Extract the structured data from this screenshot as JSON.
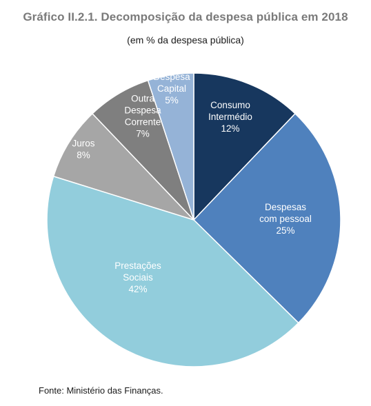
{
  "title": "Gráfico II.2.1. Decomposição da despesa pública em 2018",
  "subtitle": "(em % da despesa pública)",
  "source": "Fonte: Ministério das Finanças.",
  "chart_data": {
    "type": "pie",
    "title": "Gráfico II.2.1. Decomposição da despesa pública em 2018",
    "subtitle": "(em % da despesa pública)",
    "unit": "%",
    "slices": [
      {
        "label": [
          "Consumo",
          "Intermédio"
        ],
        "value_label": "12%",
        "value": 12,
        "color": "#17375e",
        "text_color": "#ffffff"
      },
      {
        "label": [
          "Despesas",
          "com pessoal"
        ],
        "value_label": "25%",
        "value": 25,
        "color": "#4f81bd",
        "text_color": "#ffffff"
      },
      {
        "label": [
          "Prestações",
          "Sociais"
        ],
        "value_label": "42%",
        "value": 42,
        "color": "#92cddc",
        "text_color": "#ffffff"
      },
      {
        "label": [
          "Juros"
        ],
        "value_label": "8%",
        "value": 8,
        "color": "#a6a6a6",
        "text_color": "#ffffff"
      },
      {
        "label": [
          "Outra",
          "Despesa",
          "Corrente"
        ],
        "value_label": "7%",
        "value": 7,
        "color": "#7f7f7f",
        "text_color": "#ffffff"
      },
      {
        "label": [
          "Despesa",
          "Capital"
        ],
        "value_label": "5%",
        "value": 5,
        "color": "#95b3d7",
        "text_color": "#ffffff"
      }
    ]
  }
}
